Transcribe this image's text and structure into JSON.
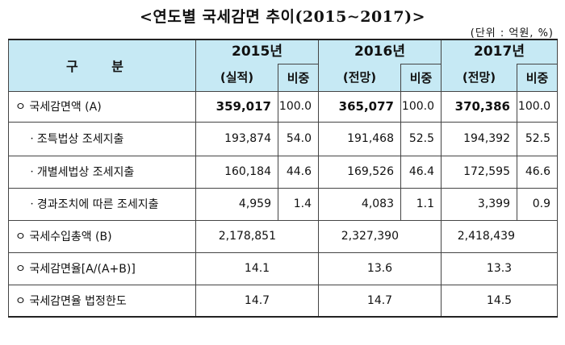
{
  "title": "<연도별 국세감면 추이(2015∼2017)>",
  "unit": "(단위 : 억원, %)",
  "header": {
    "gubun": "구 분",
    "cols": [
      {
        "year": "2015년",
        "kind": "(실적)",
        "share": "비중"
      },
      {
        "year": "2016년",
        "kind": "(전망)",
        "share": "비중"
      },
      {
        "year": "2017년",
        "kind": "(전망)",
        "share": "비중"
      }
    ]
  },
  "rows": {
    "total": {
      "label": "ㅇ 국세감면액 (A)",
      "v": [
        "359,017",
        "100.0",
        "365,077",
        "100.0",
        "370,386",
        "100.0"
      ]
    },
    "sub1": {
      "label": "ㆍ조특법상 조세지출",
      "v": [
        "193,874",
        "54.0",
        "191,468",
        "52.5",
        "194,392",
        "52.5"
      ]
    },
    "sub2": {
      "label": "ㆍ개별세법상 조세지출",
      "v": [
        "160,184",
        "44.6",
        "169,526",
        "46.4",
        "172,595",
        "46.6"
      ]
    },
    "sub3": {
      "label": "ㆍ경과조치에 따른 조세지출",
      "v": [
        "4,959",
        "1.4",
        "4,083",
        "1.1",
        "3,399",
        "0.9"
      ]
    },
    "revenue": {
      "label": "ㅇ 국세수입총액 (B)",
      "v": [
        "2,178,851",
        "2,327,390",
        "2,418,439"
      ]
    },
    "rate": {
      "label": "ㅇ 국세감면율[A/(A+B)]",
      "v": [
        "14.1",
        "13.6",
        "13.3"
      ]
    },
    "limit": {
      "label": "ㅇ 국세감면율 법정한도",
      "v": [
        "14.7",
        "14.7",
        "14.5"
      ]
    }
  }
}
